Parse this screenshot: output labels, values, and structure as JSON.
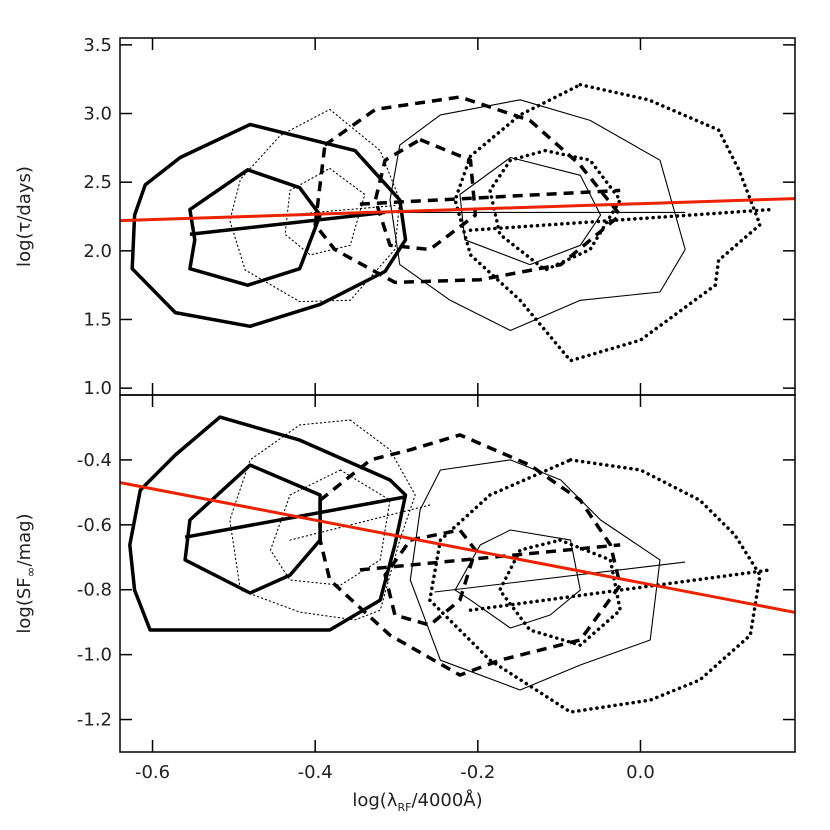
{
  "chart_data": [
    {
      "type": "line",
      "xlim": [
        -0.64,
        0.19
      ],
      "ylim": [
        0.95,
        3.55
      ],
      "xticks": [
        -0.6,
        -0.4,
        -0.2,
        {
          "value": 0,
          "label": "0.0"
        }
      ],
      "yticks": [
        {
          "value": 1,
          "label": "1.0"
        },
        1.5,
        {
          "value": 2,
          "label": "2.0"
        },
        2.5,
        {
          "value": 3,
          "label": "3.0"
        },
        3.5
      ],
      "ylabel": [
        "log(τ/days)"
      ],
      "series": [
        {
          "color": "#000000",
          "linestyle": "solid",
          "linewidth": "thick",
          "closed": true,
          "x": [
            -0.48,
            -0.351,
            -0.296,
            -0.289,
            -0.314,
            -0.394,
            -0.48,
            -0.572,
            -0.625,
            -0.622,
            -0.609,
            -0.566
          ],
          "values": [
            2.92,
            2.73,
            2.37,
            2.08,
            1.85,
            1.61,
            1.45,
            1.55,
            1.87,
            2.26,
            2.48,
            2.68
          ]
        },
        {
          "color": "#000000",
          "linestyle": "solid",
          "linewidth": "thick",
          "closed": true,
          "x": [
            -0.483,
            -0.419,
            -0.394,
            -0.419,
            -0.483,
            -0.554,
            -0.548,
            -0.554
          ],
          "values": [
            2.59,
            2.46,
            2.26,
            1.87,
            1.75,
            1.87,
            2.08,
            2.3
          ]
        },
        {
          "color": "#000000",
          "linestyle": "solid",
          "linewidth": "thick",
          "closed": false,
          "x": [
            -0.554,
            -0.314
          ],
          "values": [
            2.12,
            2.28
          ]
        },
        {
          "color": "#000000",
          "linestyle": "dotted",
          "linewidth": "thin",
          "closed": true,
          "x": [
            -0.382,
            -0.32,
            -0.296,
            -0.302,
            -0.357,
            -0.419,
            -0.486,
            -0.505,
            -0.492,
            -0.443
          ],
          "values": [
            3.03,
            2.73,
            2.37,
            2.01,
            1.64,
            1.63,
            1.86,
            2.22,
            2.52,
            2.84
          ]
        },
        {
          "color": "#000000",
          "linestyle": "dotted",
          "linewidth": "thin",
          "closed": true,
          "x": [
            -0.382,
            -0.339,
            -0.357,
            -0.406,
            -0.437,
            -0.431
          ],
          "values": [
            2.6,
            2.41,
            2.04,
            1.97,
            2.12,
            2.44
          ]
        },
        {
          "color": "#000000",
          "linestyle": "dotted",
          "linewidth": "thin",
          "closed": false,
          "x": [
            -0.437,
            -0.302
          ],
          "values": [
            2.26,
            2.33
          ]
        },
        {
          "color": "#000000",
          "linestyle": "dashed",
          "linewidth": "thick",
          "closed": true,
          "x": [
            -0.388,
            -0.326,
            -0.222,
            -0.136,
            -0.075,
            -0.025,
            -0.098,
            -0.197,
            -0.302,
            -0.376,
            -0.4
          ],
          "values": [
            2.77,
            3.03,
            3.12,
            2.95,
            2.63,
            2.26,
            1.9,
            1.79,
            1.77,
            2.01,
            2.19
          ]
        },
        {
          "color": "#000000",
          "linestyle": "dashed",
          "linewidth": "thick",
          "closed": true,
          "x": [
            -0.271,
            -0.209,
            -0.203,
            -0.259,
            -0.308,
            -0.326,
            -0.314
          ],
          "values": [
            2.81,
            2.66,
            2.26,
            2.01,
            2.04,
            2.37,
            2.66
          ]
        },
        {
          "color": "#000000",
          "linestyle": "dashed",
          "linewidth": "thick",
          "closed": false,
          "x": [
            -0.345,
            -0.025
          ],
          "values": [
            2.34,
            2.44
          ]
        },
        {
          "color": "#000000",
          "linestyle": "solid",
          "linewidth": "thin",
          "closed": true,
          "x": [
            -0.246,
            -0.148,
            -0.062,
            0.024,
            0.055,
            0.024,
            -0.074,
            -0.16,
            -0.234,
            -0.296,
            -0.308,
            -0.296
          ],
          "values": [
            2.99,
            3.1,
            2.95,
            2.66,
            2.01,
            1.7,
            1.64,
            1.42,
            1.64,
            1.9,
            2.37,
            2.77
          ]
        },
        {
          "color": "#000000",
          "linestyle": "solid",
          "linewidth": "thin",
          "closed": true,
          "x": [
            -0.16,
            -0.074,
            -0.049,
            -0.074,
            -0.136,
            -0.216,
            -0.222
          ],
          "values": [
            2.68,
            2.55,
            2.26,
            2.04,
            1.9,
            2.08,
            2.41
          ]
        },
        {
          "color": "#000000",
          "linestyle": "solid",
          "linewidth": "thin",
          "closed": false,
          "x": [
            -0.314,
            0.055
          ],
          "values": [
            2.28,
            2.28
          ]
        },
        {
          "color": "#000000",
          "linestyle": "dotted",
          "linewidth": "thick",
          "closed": true,
          "x": [
            -0.074,
            0.01,
            0.096,
            0.121,
            0.147,
            0.096,
            0.092,
            0,
            -0.086,
            -0.148,
            -0.209,
            -0.228,
            -0.209,
            -0.148
          ],
          "values": [
            3.21,
            3.1,
            2.88,
            2.59,
            2.19,
            1.93,
            1.75,
            1.35,
            1.2,
            1.64,
            1.97,
            2.37,
            2.69,
            2.99
          ]
        },
        {
          "color": "#000000",
          "linestyle": "dotted",
          "linewidth": "thick",
          "closed": true,
          "x": [
            -0.117,
            -0.062,
            -0.025,
            -0.062,
            -0.117,
            -0.173,
            -0.185,
            -0.16
          ],
          "values": [
            2.73,
            2.66,
            2.37,
            2.01,
            1.86,
            2.12,
            2.44,
            2.66
          ]
        },
        {
          "color": "#000000",
          "linestyle": "dotted",
          "linewidth": "thick",
          "closed": false,
          "x": [
            -0.209,
            0.16
          ],
          "values": [
            2.15,
            2.3
          ]
        },
        {
          "color": "#ee2200",
          "linestyle": "solid",
          "linewidth": "fit",
          "closed": false,
          "x": [
            -0.64,
            0.19
          ],
          "values": [
            2.22,
            2.38
          ]
        }
      ]
    },
    {
      "type": "line",
      "xlim": [
        -0.64,
        0.19
      ],
      "ylim": [
        -1.3,
        -0.2
      ],
      "xticks": [
        -0.6,
        -0.4,
        -0.2,
        {
          "value": 0,
          "label": "0.0"
        }
      ],
      "yticks": [
        -0.4,
        -0.6,
        -0.8,
        {
          "value": -1,
          "label": "-1.0"
        },
        -1.2
      ],
      "xlabel": [
        "log(λ",
        "RF",
        "/4000Å)"
      ],
      "ylabel": [
        "log(SF",
        "∞",
        "/mag)"
      ],
      "series": [
        {
          "color": "#000000",
          "linestyle": "solid",
          "linewidth": "thick",
          "closed": true,
          "x": [
            -0.517,
            -0.419,
            -0.308,
            -0.289,
            -0.302,
            -0.32,
            -0.382,
            -0.48,
            -0.603,
            -0.622,
            -0.628,
            -0.615,
            -0.572
          ],
          "values": [
            -0.268,
            -0.339,
            -0.462,
            -0.508,
            -0.662,
            -0.832,
            -0.924,
            -0.924,
            -0.924,
            -0.801,
            -0.662,
            -0.493,
            -0.385
          ]
        },
        {
          "color": "#000000",
          "linestyle": "solid",
          "linewidth": "thick",
          "closed": true,
          "x": [
            -0.48,
            -0.394,
            -0.394,
            -0.431,
            -0.48,
            -0.56,
            -0.554
          ],
          "values": [
            -0.416,
            -0.508,
            -0.647,
            -0.755,
            -0.81,
            -0.708,
            -0.585
          ]
        },
        {
          "color": "#000000",
          "linestyle": "solid",
          "linewidth": "thick",
          "closed": false,
          "x": [
            -0.56,
            -0.289
          ],
          "values": [
            -0.638,
            -0.514
          ]
        },
        {
          "color": "#000000",
          "linestyle": "dotted",
          "linewidth": "thin",
          "closed": true,
          "x": [
            -0.357,
            -0.308,
            -0.277,
            -0.296,
            -0.32,
            -0.351,
            -0.419,
            -0.492,
            -0.505,
            -0.48,
            -0.419
          ],
          "values": [
            -0.277,
            -0.369,
            -0.508,
            -0.647,
            -0.863,
            -0.893,
            -0.869,
            -0.801,
            -0.585,
            -0.4,
            -0.292
          ]
        },
        {
          "color": "#000000",
          "linestyle": "dotted",
          "linewidth": "thin",
          "closed": true,
          "x": [
            -0.369,
            -0.308,
            -0.32,
            -0.369,
            -0.431,
            -0.455,
            -0.431
          ],
          "values": [
            -0.431,
            -0.524,
            -0.708,
            -0.786,
            -0.77,
            -0.678,
            -0.508
          ]
        },
        {
          "color": "#000000",
          "linestyle": "dotted",
          "linewidth": "thin",
          "closed": false,
          "x": [
            -0.431,
            -0.259
          ],
          "values": [
            -0.647,
            -0.539
          ]
        },
        {
          "color": "#000000",
          "linestyle": "dashed",
          "linewidth": "thick",
          "closed": true,
          "x": [
            -0.394,
            -0.332,
            -0.283,
            -0.222,
            -0.136,
            -0.074,
            -0.037,
            -0.025,
            -0.074,
            -0.173,
            -0.222,
            -0.308,
            -0.382,
            -0.394
          ],
          "values": [
            -0.524,
            -0.4,
            -0.369,
            -0.323,
            -0.416,
            -0.524,
            -0.662,
            -0.786,
            -0.955,
            -1.017,
            -1.063,
            -0.94,
            -0.77,
            -0.647
          ]
        },
        {
          "color": "#000000",
          "linestyle": "dashed",
          "linewidth": "thick",
          "closed": true,
          "x": [
            -0.283,
            -0.222,
            -0.203,
            -0.222,
            -0.259,
            -0.302,
            -0.314
          ],
          "values": [
            -0.647,
            -0.616,
            -0.678,
            -0.832,
            -0.909,
            -0.878,
            -0.755
          ]
        },
        {
          "color": "#000000",
          "linestyle": "dashed",
          "linewidth": "thick",
          "closed": false,
          "x": [
            -0.345,
            -0.025
          ],
          "values": [
            -0.739,
            -0.662
          ]
        },
        {
          "color": "#000000",
          "linestyle": "solid",
          "linewidth": "thin",
          "closed": true,
          "x": [
            -0.246,
            -0.16,
            -0.098,
            -0.049,
            0.024,
            0.012,
            -0.074,
            -0.148,
            -0.246,
            -0.283,
            -0.271
          ],
          "values": [
            -0.431,
            -0.4,
            -0.462,
            -0.585,
            -0.708,
            -0.955,
            -1.032,
            -1.109,
            -1.017,
            -0.77,
            -0.554
          ]
        },
        {
          "color": "#000000",
          "linestyle": "solid",
          "linewidth": "thin",
          "closed": true,
          "x": [
            -0.16,
            -0.086,
            -0.074,
            -0.111,
            -0.16,
            -0.209,
            -0.228,
            -0.197
          ],
          "values": [
            -0.616,
            -0.647,
            -0.801,
            -0.878,
            -0.918,
            -0.832,
            -0.801,
            -0.662
          ]
        },
        {
          "color": "#000000",
          "linestyle": "solid",
          "linewidth": "thin",
          "closed": false,
          "x": [
            -0.253,
            0.055
          ],
          "values": [
            -0.807,
            -0.715
          ]
        },
        {
          "color": "#000000",
          "linestyle": "dotted",
          "linewidth": "thick",
          "closed": true,
          "x": [
            -0.086,
            0,
            0.073,
            0.116,
            0.147,
            0.135,
            0.073,
            0.012,
            -0.086,
            -0.185,
            -0.259,
            -0.246,
            -0.185
          ],
          "values": [
            -0.4,
            -0.431,
            -0.524,
            -0.631,
            -0.755,
            -0.94,
            -1.078,
            -1.14,
            -1.177,
            -1.017,
            -0.832,
            -0.647,
            -0.508
          ]
        },
        {
          "color": "#000000",
          "linestyle": "dotted",
          "linewidth": "thick",
          "closed": true,
          "x": [
            -0.099,
            -0.037,
            -0.025,
            -0.074,
            -0.136,
            -0.173,
            -0.148
          ],
          "values": [
            -0.647,
            -0.708,
            -0.863,
            -0.971,
            -0.924,
            -0.801,
            -0.678
          ]
        },
        {
          "color": "#000000",
          "linestyle": "dotted",
          "linewidth": "thick",
          "closed": false,
          "x": [
            -0.209,
            0.16
          ],
          "values": [
            -0.863,
            -0.739
          ]
        },
        {
          "color": "#ee2200",
          "linestyle": "solid",
          "linewidth": "fit",
          "closed": false,
          "x": [
            -0.64,
            0.19
          ],
          "values": [
            -0.47,
            -0.87
          ]
        }
      ]
    }
  ]
}
